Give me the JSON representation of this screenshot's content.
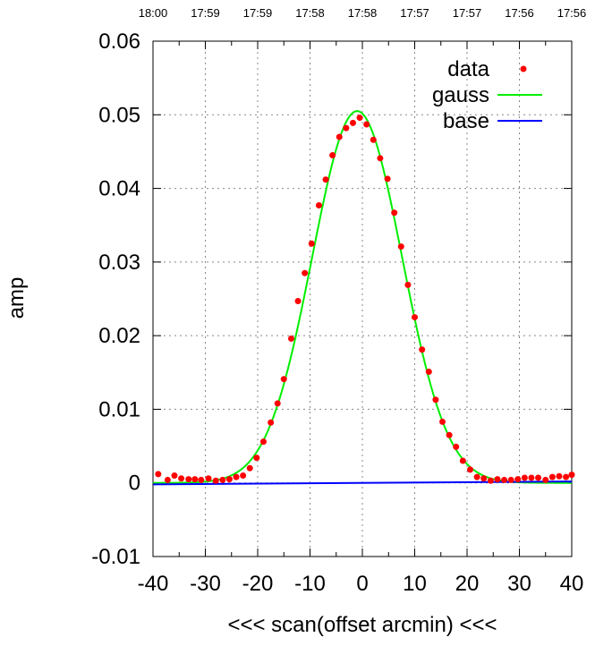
{
  "chart_data": {
    "type": "scatter",
    "xlabel": "<<< scan(offset arcmin) <<<",
    "ylabel": "amp",
    "xlim": [
      -40,
      40
    ],
    "ylim": [
      -0.01,
      0.06
    ],
    "xticks": [
      "-40",
      "-30",
      "-20",
      "-10",
      "0",
      "10",
      "20",
      "30",
      "40"
    ],
    "yticks": [
      "-0.01",
      "0",
      "0.01",
      "0.02",
      "0.03",
      "0.04",
      "0.05",
      "0.06"
    ],
    "top_tick_labels": [
      "18:00",
      "17:59",
      "17:59",
      "17:58",
      "17:58",
      "17:57",
      "17:57",
      "17:56",
      "17:56"
    ],
    "grid": true,
    "legend_position": "top-right",
    "legend": [
      {
        "label": "data",
        "color": "#ff0000",
        "kind": "point"
      },
      {
        "label": "gauss",
        "color": "#00ee00",
        "kind": "line"
      },
      {
        "label": "base",
        "color": "#0000ff",
        "kind": "line"
      }
    ],
    "series": [
      {
        "name": "data",
        "type": "scatter",
        "color": "#ff0000",
        "x": [
          -39.0,
          -37.2,
          -35.9,
          -34.6,
          -33.2,
          -32.0,
          -30.8,
          -29.4,
          -28.0,
          -26.7,
          -25.4,
          -24.1,
          -22.8,
          -21.5,
          -20.2,
          -18.9,
          -17.5,
          -16.2,
          -15.0,
          -13.6,
          -12.3,
          -11.0,
          -9.7,
          -8.3,
          -7.0,
          -5.7,
          -4.4,
          -3.1,
          -1.8,
          -0.5,
          0.8,
          2.1,
          3.4,
          4.8,
          6.1,
          7.4,
          8.7,
          10.0,
          11.4,
          12.7,
          14.0,
          15.3,
          16.6,
          17.9,
          19.2,
          20.6,
          21.9,
          23.2,
          24.5,
          25.8,
          27.1,
          28.4,
          29.7,
          31.0,
          32.3,
          33.6,
          35.0,
          36.3,
          37.6,
          38.9,
          40.0
        ],
        "y": [
          0.0012,
          0.0004,
          0.001,
          0.0006,
          0.0005,
          0.0005,
          0.0004,
          0.0006,
          0.0003,
          0.0004,
          0.0005,
          0.0008,
          0.001,
          0.002,
          0.0034,
          0.0056,
          0.0082,
          0.0108,
          0.0141,
          0.0196,
          0.0247,
          0.0285,
          0.0325,
          0.0377,
          0.0412,
          0.0445,
          0.047,
          0.0482,
          0.0489,
          0.0496,
          0.0487,
          0.0466,
          0.0441,
          0.0413,
          0.0367,
          0.0321,
          0.0269,
          0.0225,
          0.0181,
          0.0151,
          0.0113,
          0.0083,
          0.0065,
          0.0049,
          0.003,
          0.0018,
          0.0008,
          0.0006,
          0.0003,
          0.0005,
          0.0004,
          0.0004,
          0.0005,
          0.0007,
          0.0007,
          0.0007,
          0.0004,
          0.0008,
          0.0009,
          0.0008,
          0.0011
        ]
      },
      {
        "name": "gauss",
        "type": "line",
        "color": "#00ee00",
        "amplitude": 0.0505,
        "center": -1.0,
        "sigma": 8.6,
        "offset": 0.0
      },
      {
        "name": "base",
        "type": "line",
        "color": "#0000ff",
        "x": [
          -40,
          40
        ],
        "y": [
          -0.0002,
          0.0002
        ]
      }
    ]
  }
}
